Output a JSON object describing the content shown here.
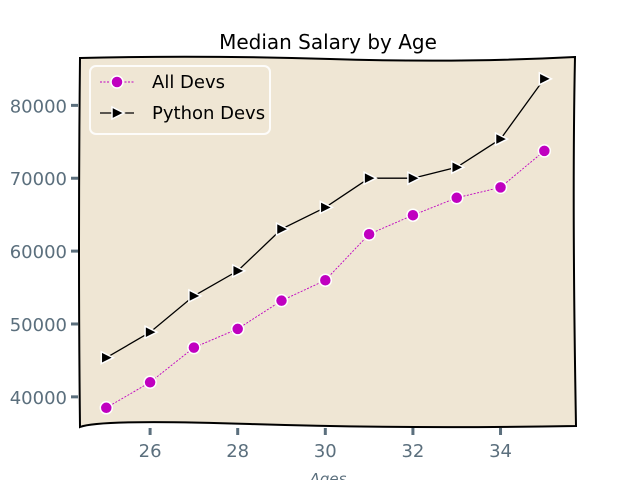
{
  "chart_data": {
    "type": "line",
    "title": "Median Salary by Age",
    "xlabel": "Ages",
    "ylabel": "",
    "x": [
      25,
      26,
      27,
      28,
      29,
      30,
      31,
      32,
      33,
      34,
      35
    ],
    "xlim": [
      24.4,
      35.7
    ],
    "ylim": [
      36000,
      86500
    ],
    "xticks": [
      26,
      28,
      30,
      32,
      34
    ],
    "yticks": [
      40000,
      50000,
      60000,
      70000,
      80000
    ],
    "grid": false,
    "legend_position": "top-left",
    "background_color": "#efe6d4",
    "series": [
      {
        "name": "All Devs",
        "marker": "circle",
        "line_style": "dashed",
        "color": "#c000c0",
        "values": [
          38496,
          42000,
          46752,
          49320,
          53200,
          56000,
          62316,
          64928,
          67317,
          68748,
          73752
        ]
      },
      {
        "name": "Python Devs",
        "marker": "triangle-right",
        "line_style": "solid",
        "color": "#000000",
        "values": [
          45372,
          48876,
          53850,
          57287,
          63016,
          65998,
          70003,
          70000,
          71496,
          75370,
          83640
        ]
      }
    ]
  }
}
